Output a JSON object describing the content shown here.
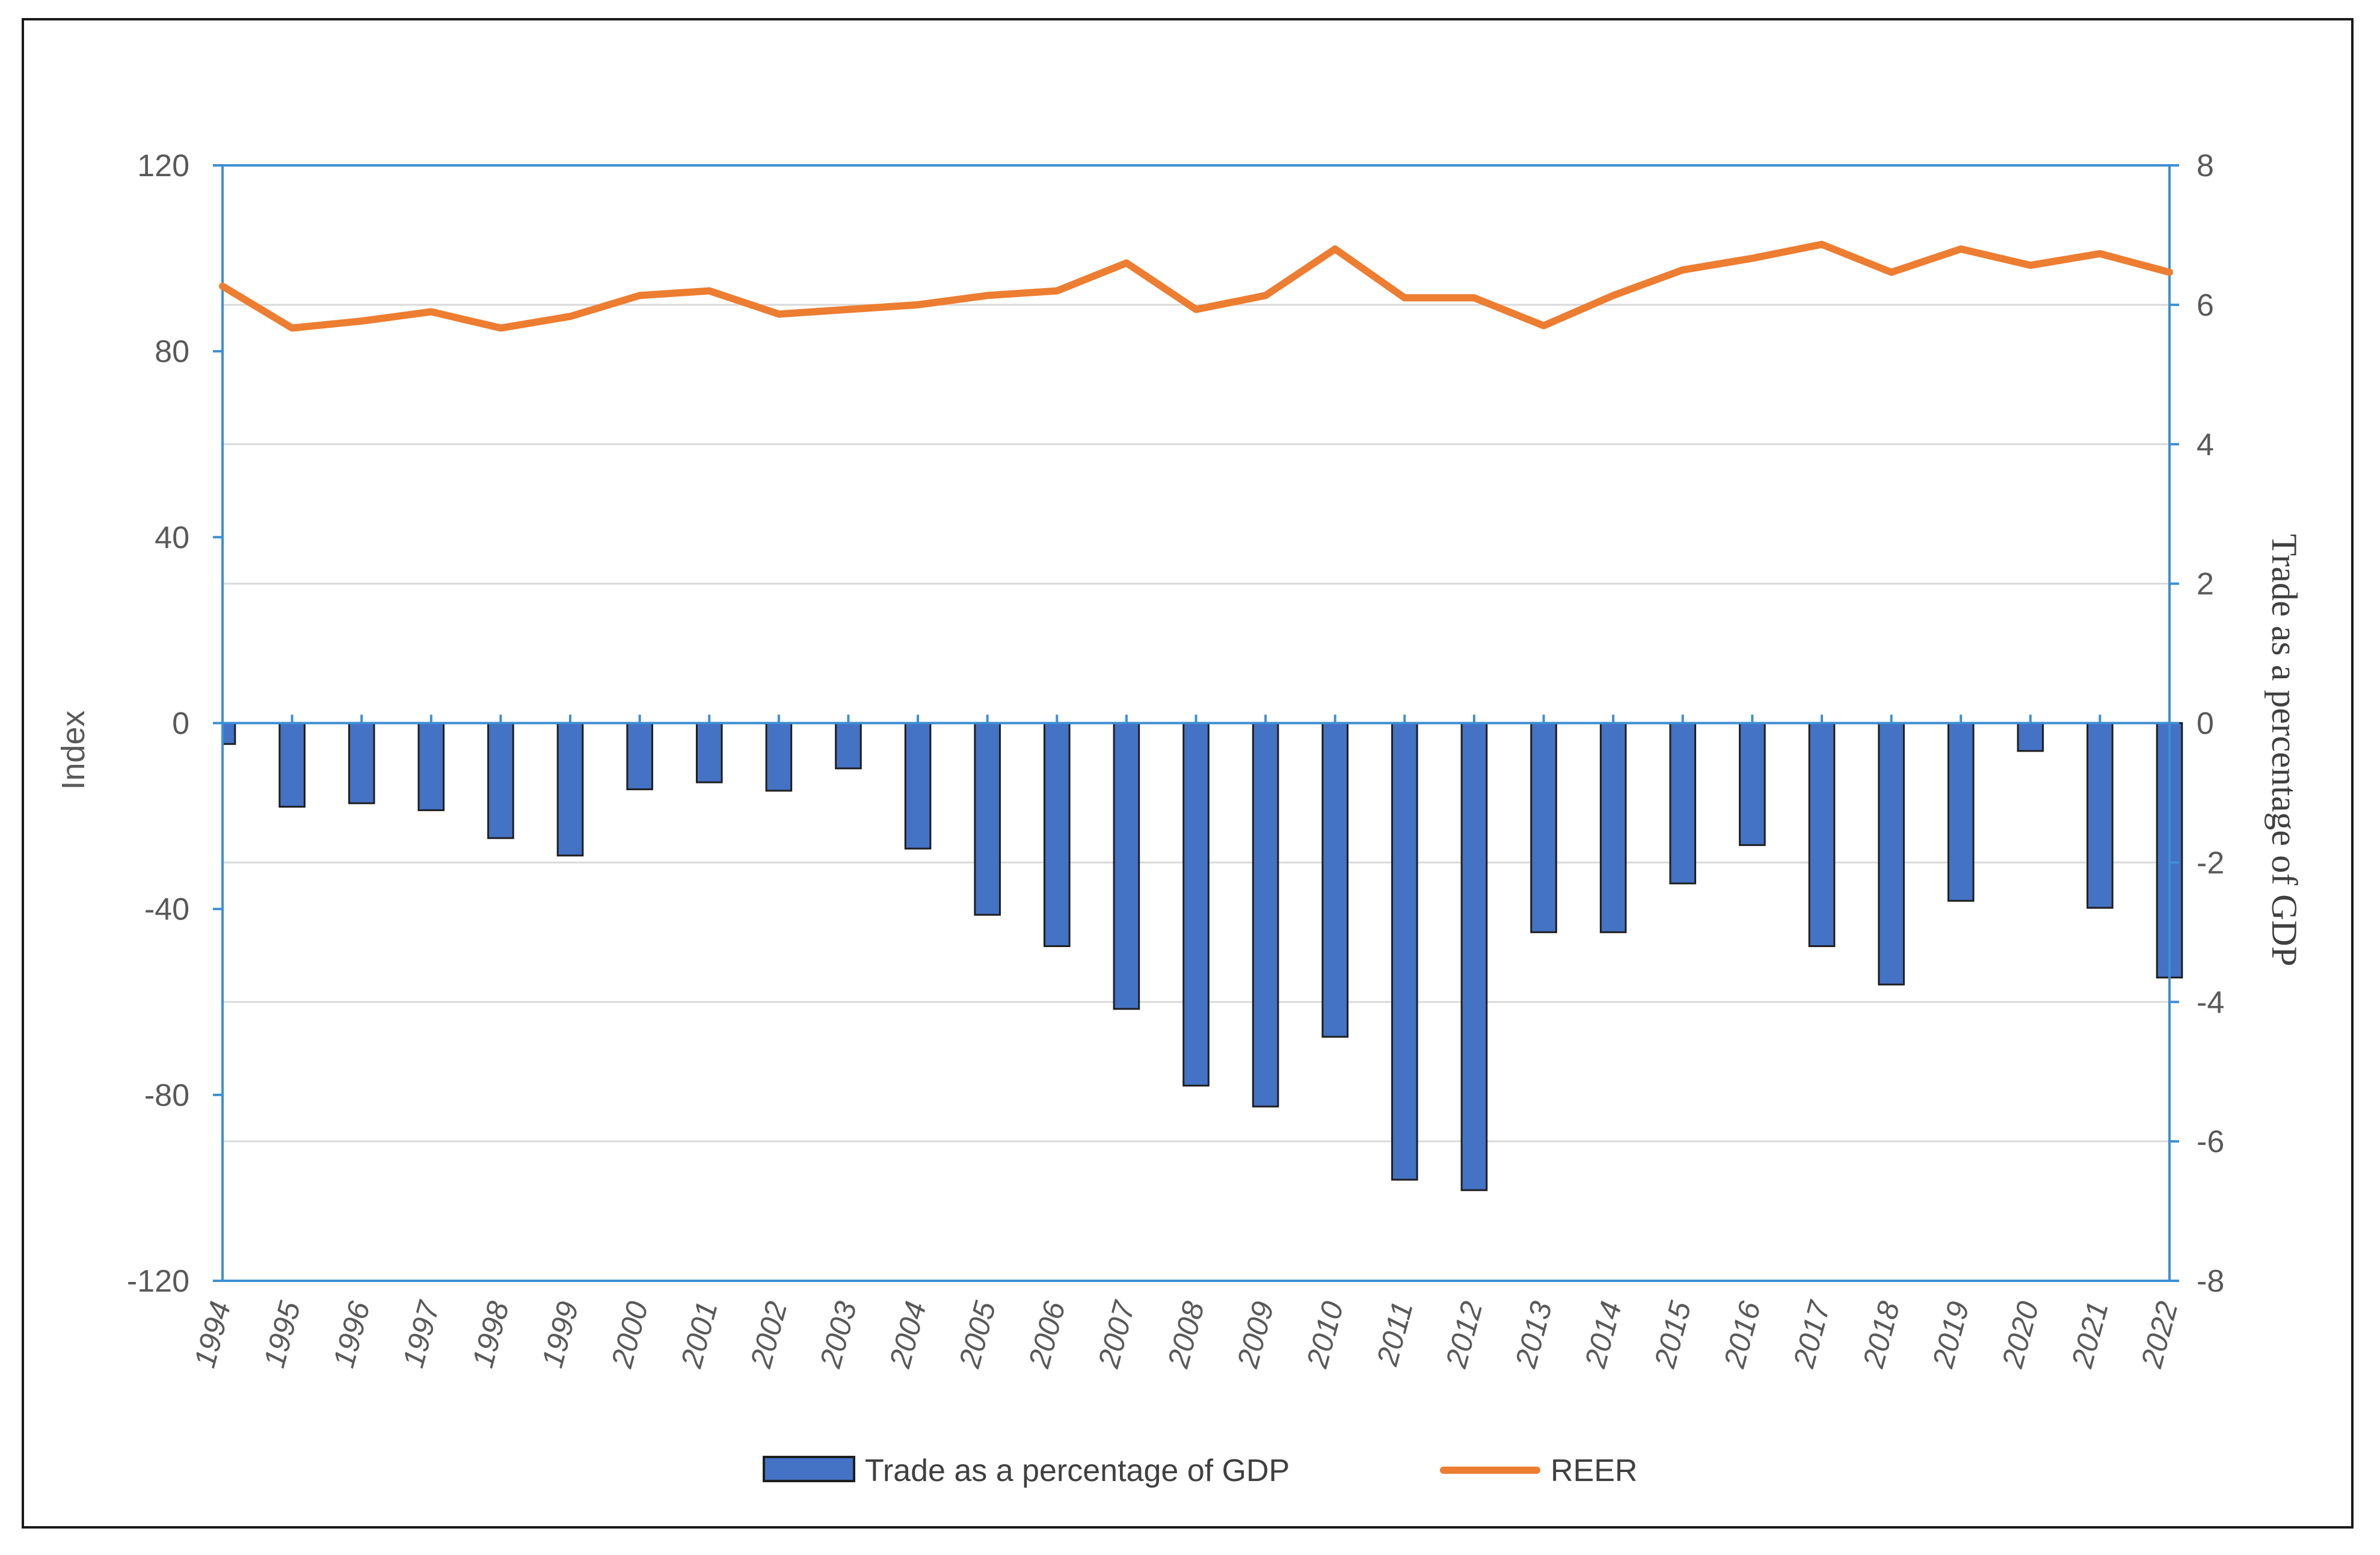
{
  "chart_data": {
    "type": "bar+line",
    "categories": [
      "1994",
      "1995",
      "1996",
      "1997",
      "1998",
      "1999",
      "2000",
      "2001",
      "2002",
      "2003",
      "2004",
      "2005",
      "2006",
      "2007",
      "2008",
      "2009",
      "2010",
      "2011",
      "2012",
      "2013",
      "2014",
      "2015",
      "2016",
      "2017",
      "2018",
      "2019",
      "2020",
      "2021",
      "2022"
    ],
    "series": [
      {
        "name": "Trade as a percentage of GDP",
        "type": "bar",
        "axis": "right",
        "color": "#4472C4",
        "values": [
          -0.3,
          -1.2,
          -1.15,
          -1.25,
          -1.65,
          -1.9,
          -0.95,
          -0.85,
          -0.97,
          -0.65,
          -1.8,
          -2.75,
          -3.2,
          -4.1,
          -5.2,
          -5.5,
          -4.5,
          -6.55,
          -6.7,
          -3.0,
          -3.0,
          -2.3,
          -1.75,
          -3.2,
          -3.75,
          -2.55,
          -0.4,
          -2.65,
          -3.65
        ]
      },
      {
        "name": "REER",
        "type": "line",
        "axis": "left",
        "color": "#ED7D31",
        "values": [
          94,
          85,
          86.5,
          88.5,
          85,
          87.5,
          92,
          93,
          88,
          89,
          90,
          92,
          93,
          99,
          89,
          92,
          102,
          91.5,
          91.5,
          85.5,
          92,
          97.5,
          100,
          103,
          97,
          102,
          98.5,
          101,
          97
        ]
      }
    ],
    "title": "",
    "ylabel": "Index",
    "ylabel_right": "Trade as a percentage  of GDP",
    "xlabel": "",
    "ylim": [
      -120,
      120
    ],
    "ylim_right": [
      -8,
      8
    ],
    "yticks": [
      "120",
      "80",
      "40",
      "0",
      "-40",
      "-80",
      "-120"
    ],
    "yticks_right": [
      "8",
      "6",
      "4",
      "2",
      "0",
      "-2",
      "-4",
      "-6",
      "-8"
    ],
    "legend": [
      "Trade as a percentage of GDP",
      "REER"
    ],
    "legend_position": "bottom",
    "grid": "horizontal"
  }
}
